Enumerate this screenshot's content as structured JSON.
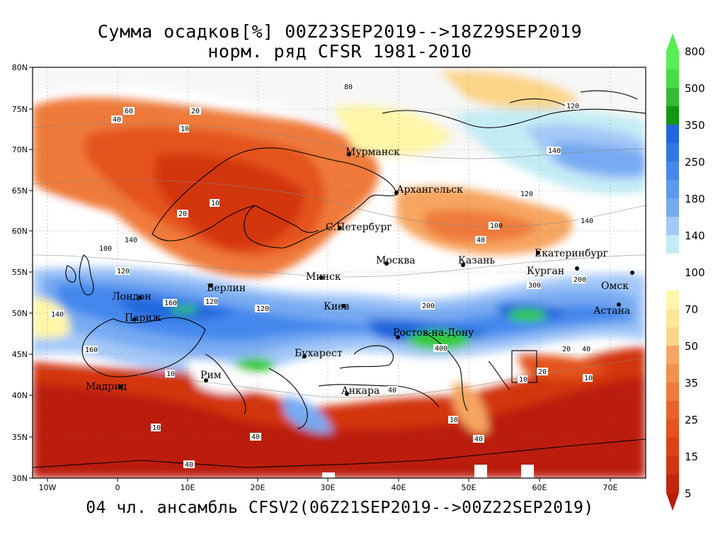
{
  "title": {
    "line1": "Сумма осадков[%] 00Z23SEP2019-->18Z29SEP2019",
    "line2": "норм. ряд CFSR 1981-2010"
  },
  "footer": "04 чл. ансамбль CFSV2(06Z21SEP2019-->00Z22SEP2019)",
  "axes": {
    "x_ticks": [
      "10W",
      "0",
      "10E",
      "20E",
      "30E",
      "40E",
      "50E",
      "60E",
      "70E"
    ],
    "y_ticks": [
      "80N",
      "75N",
      "70N",
      "65N",
      "60N",
      "55N",
      "50N",
      "45N",
      "40N",
      "35N",
      "30N"
    ]
  },
  "colorbar": {
    "levels": [
      "800",
      "500",
      "350",
      "250",
      "180",
      "140",
      "100",
      "70",
      "50",
      "35",
      "25",
      "15",
      "5"
    ],
    "upper_colors": [
      "#55ee55",
      "#33cc33",
      "#119911",
      "#2266dd",
      "#4488ee",
      "#77aaf2",
      "#a4c8f8",
      "#c4ecf4"
    ],
    "lower_colors": [
      "#fff6a8",
      "#fbd58a",
      "#f7a560",
      "#ef7a3a",
      "#e4521d",
      "#d33410",
      "#bb1a08"
    ]
  },
  "cities": [
    {
      "name": "Мурманск"
    },
    {
      "name": "Архангельск"
    },
    {
      "name": "С.Петербург"
    },
    {
      "name": "Москва"
    },
    {
      "name": "Казань"
    },
    {
      "name": "Екатеринбург"
    },
    {
      "name": "Курган"
    },
    {
      "name": "Омск"
    },
    {
      "name": "Астана"
    },
    {
      "name": "Минск"
    },
    {
      "name": "Берлин"
    },
    {
      "name": "Лондон"
    },
    {
      "name": "Париж"
    },
    {
      "name": "Киев"
    },
    {
      "name": "Ростов-на-Дону"
    },
    {
      "name": "Бухарест"
    },
    {
      "name": "Рим"
    },
    {
      "name": "Мадрид"
    },
    {
      "name": "Анкара"
    }
  ],
  "contour_labels": [
    "10",
    "20",
    "40",
    "60",
    "80",
    "100",
    "120",
    "140",
    "160",
    "200",
    "300",
    "400"
  ]
}
